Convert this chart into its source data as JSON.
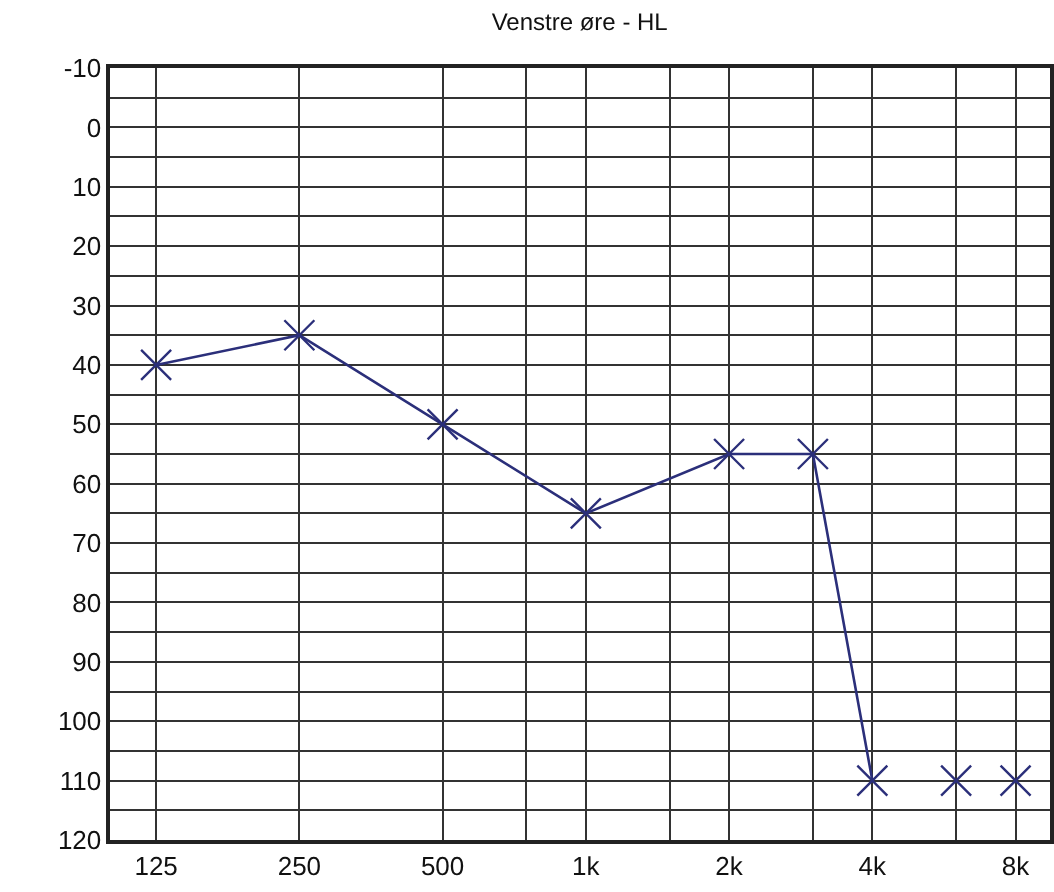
{
  "chart_data": {
    "type": "line",
    "title": "Venstre øre - HL",
    "x": [
      125,
      250,
      500,
      1000,
      2000,
      3000,
      4000
    ],
    "series": [
      {
        "color": "#2b2f7a",
        "values": [
          40,
          35,
          50,
          65,
          55,
          55,
          110
        ]
      },
      {
        "type": "scatter",
        "color": "#2b2f7a",
        "x": [
          6000,
          8000
        ],
        "values": [
          110,
          110
        ]
      }
    ],
    "log": "x",
    "xlim": [
      100,
      9450
    ],
    "ylim": [
      120,
      -10
    ],
    "xticks": [
      125,
      250,
      500,
      {
        "value": 750,
        "label": null
      },
      {
        "value": 1000,
        "label": "1k"
      },
      {
        "value": 1500,
        "label": null
      },
      {
        "value": 2000,
        "label": "2k"
      },
      {
        "value": 3000,
        "label": null
      },
      {
        "value": 4000,
        "label": "4k"
      },
      {
        "value": 6000,
        "label": null
      },
      {
        "value": 8000,
        "label": "8k"
      }
    ],
    "yticks": [
      -10,
      {
        "value": -5,
        "label": null
      },
      0,
      {
        "value": 5,
        "label": null
      },
      10,
      {
        "value": 15,
        "label": null
      },
      20,
      {
        "value": 25,
        "label": null
      },
      30,
      {
        "value": 35,
        "label": null
      },
      40,
      {
        "value": 45,
        "label": null
      },
      50,
      {
        "value": 55,
        "label": null
      },
      60,
      {
        "value": 65,
        "label": null
      },
      70,
      {
        "value": 75,
        "label": null
      },
      80,
      {
        "value": 85,
        "label": null
      },
      90,
      {
        "value": 95,
        "label": null
      },
      100,
      {
        "value": 105,
        "label": null
      },
      110,
      {
        "value": 115,
        "label": null
      },
      120
    ],
    "grid": true,
    "marker": "cross"
  }
}
